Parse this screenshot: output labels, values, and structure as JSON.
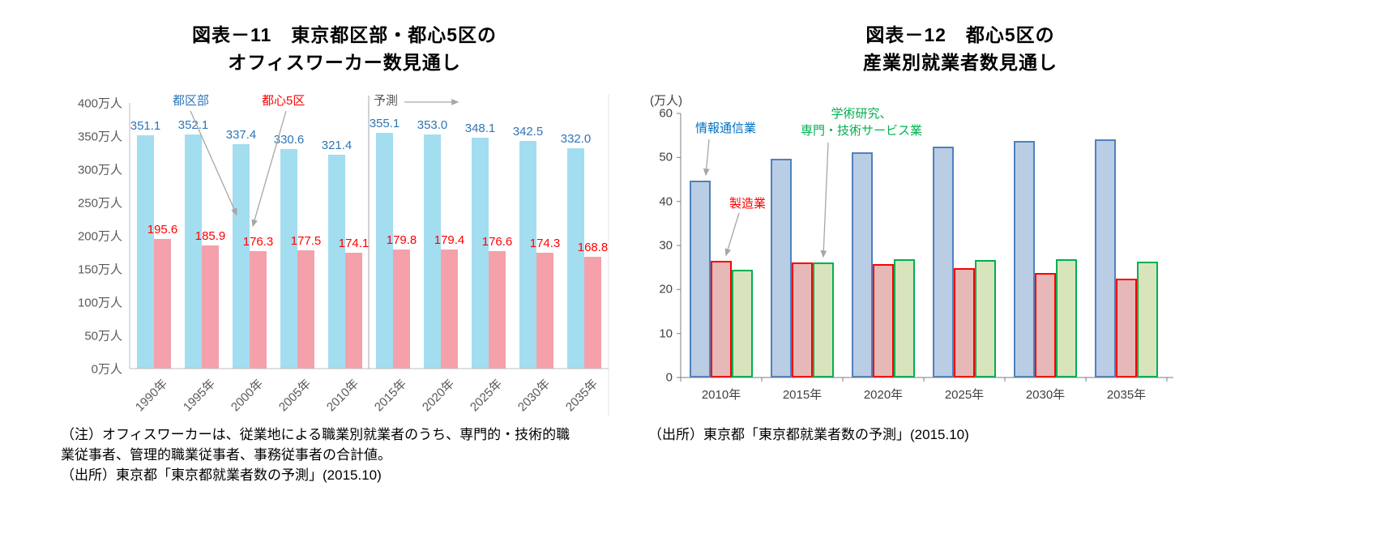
{
  "notes": {
    "left_line1": "（注）オフィスワーカーは、従業地による職業別就業者のうち、専門的・技術的職",
    "left_line2": "業従事者、管理的職業従事者、事務従事者の合計値。",
    "left_line3": "（出所）東京都「東京都就業者数の予測」(2015.10)",
    "right_line1": "（出所）東京都「東京都就業者数の予測」(2015.10)"
  },
  "chart_data": [
    {
      "type": "bar",
      "title_lines": [
        "図表－11　東京都区部・都心5区の",
        "オフィスワーカー数見通し"
      ],
      "categories": [
        "1990年",
        "1995年",
        "2000年",
        "2005年",
        "2010年",
        "2015年",
        "2020年",
        "2025年",
        "2030年",
        "2035年"
      ],
      "series": [
        {
          "name": "都区部",
          "fill": "#a3ddf0",
          "label_color": "#2e75b6",
          "values": [
            351.1,
            352.1,
            337.4,
            330.6,
            321.4,
            355.1,
            353.0,
            348.1,
            342.5,
            332.0
          ]
        },
        {
          "name": "都心5区",
          "fill": "#f4a1ab",
          "label_color": "#ff0000",
          "values": [
            195.6,
            185.9,
            176.3,
            177.5,
            174.1,
            179.8,
            179.4,
            176.6,
            174.3,
            168.8
          ]
        }
      ],
      "ylim": [
        0,
        400
      ],
      "ytick_step": 50,
      "ytick_labels": [
        "0万人",
        "50万人",
        "100万人",
        "150万人",
        "200万人",
        "250万人",
        "300万人",
        "350万人",
        "400万人"
      ],
      "forecast_label": "予測",
      "forecast_from_index": 5,
      "legend_position": "annotated-with-arrows",
      "grid": false
    },
    {
      "type": "bar",
      "title_lines": [
        "図表－12　都心5区の",
        "産業別就業者数見通し"
      ],
      "unit_label": "(万人)",
      "categories": [
        "2010年",
        "2015年",
        "2020年",
        "2025年",
        "2030年",
        "2035年"
      ],
      "series": [
        {
          "name": "情報通信業",
          "fill": "#b9cde5",
          "border": "#4f81bd",
          "label_color": "#0070c0",
          "values": [
            44.8,
            49.7,
            51.2,
            52.5,
            53.7,
            54.1
          ]
        },
        {
          "name": "製造業",
          "fill": "#e6b9b8",
          "border": "#ff0000",
          "label_color": "#ff0000",
          "values": [
            26.5,
            26.2,
            25.7,
            24.8,
            23.7,
            22.4
          ]
        },
        {
          "name": "学術研究、専門・技術サービス業",
          "label_lines": [
            "学術研究、",
            "専門・技術サービス業"
          ],
          "fill": "#d7e4bc",
          "border": "#00b050",
          "label_color": "#00b050",
          "values": [
            24.4,
            26.2,
            26.8,
            26.7,
            26.9,
            26.4
          ]
        }
      ],
      "ylim": [
        0,
        60
      ],
      "ytick_step": 10,
      "ytick_labels": [
        "0",
        "10",
        "20",
        "30",
        "40",
        "50",
        "60"
      ],
      "legend_position": "annotated-with-arrows",
      "grid": false
    }
  ]
}
